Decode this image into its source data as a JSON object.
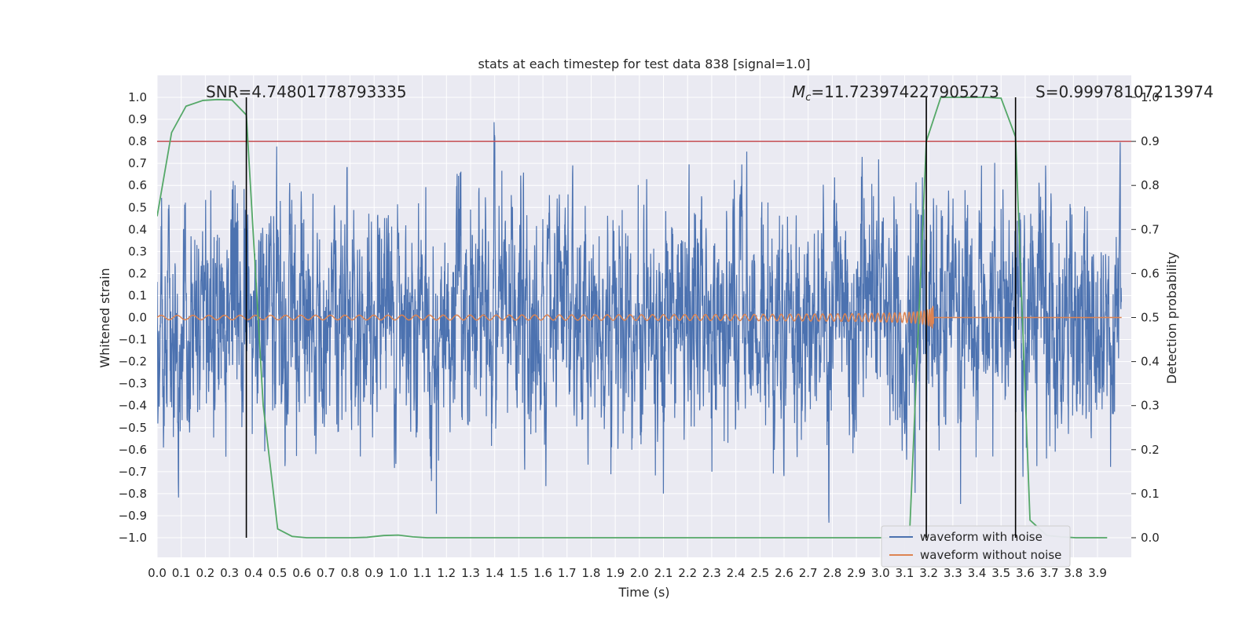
{
  "chart_data": {
    "type": "line",
    "title": "stats at each timestep for test data 838 [signal=1.0]",
    "xlabel": "Time (s)",
    "ylabel": "Whitened strain",
    "y2label": "Detection probability",
    "xlim": [
      0.0,
      4.0
    ],
    "ylim": [
      -1.1,
      1.1
    ],
    "y2lim": [
      -0.05,
      1.0
    ],
    "x_ticks": [
      0.0,
      0.1,
      0.2,
      0.3,
      0.4,
      0.5,
      0.6,
      0.7,
      0.8,
      0.9,
      1.0,
      1.1,
      1.2,
      1.3,
      1.4,
      1.5,
      1.6,
      1.7,
      1.8,
      1.9,
      2.0,
      2.1,
      2.2,
      2.3,
      2.4,
      2.5,
      2.6,
      2.7,
      2.8,
      2.9,
      3.0,
      3.1,
      3.2,
      3.3,
      3.4,
      3.5,
      3.6,
      3.7,
      3.8,
      3.9
    ],
    "x_tick_labels": [
      "0.0",
      "0.1",
      "0.2",
      "0.3",
      "0.4",
      "0.5",
      "0.6",
      "0.7",
      "0.8",
      "0.9",
      "1.0",
      "1.1",
      "1.2",
      "1.3",
      "1.4",
      "1.5",
      "1.6",
      "1.7",
      "1.8",
      "1.9",
      "2.0",
      "2.1",
      "2.2",
      "2.3",
      "2.4",
      "2.5",
      "2.6",
      "2.7",
      "2.8",
      "2.9",
      "3.0",
      "3.1",
      "3.2",
      "3.3",
      "3.4",
      "3.5",
      "3.6",
      "3.7",
      "3.8",
      "3.9"
    ],
    "y_ticks": [
      1.0,
      0.9,
      0.8,
      0.7,
      0.6,
      0.5,
      0.4,
      0.3,
      0.2,
      0.1,
      0.0,
      -0.1,
      -0.2,
      -0.3,
      -0.4,
      -0.5,
      -0.6,
      -0.7,
      -0.8,
      -0.9,
      -1.0
    ],
    "y_tick_labels": [
      "1.0",
      "0.9",
      "0.8",
      "0.7",
      "0.6",
      "0.5",
      "0.4",
      "0.3",
      "0.2",
      "0.1",
      "0.0",
      "−0.1",
      "−0.2",
      "−0.3",
      "−0.4",
      "−0.5",
      "−0.6",
      "−0.7",
      "−0.8",
      "−0.9",
      "−1.0"
    ],
    "y2_ticks": [
      1.0,
      0.9,
      0.8,
      0.7,
      0.6,
      0.5,
      0.4,
      0.3,
      0.2,
      0.1,
      0.0
    ],
    "y2_tick_labels": [
      "1.0",
      "0.9",
      "0.8",
      "0.7",
      "0.6",
      "0.5",
      "0.4",
      "0.3",
      "0.2",
      "0.1",
      "0.0"
    ],
    "grid": true,
    "legend_position": "bottom-right",
    "series": [
      {
        "name": "waveform with noise",
        "color": "#4c72b0",
        "axis": "left",
        "description_values": "dense random noise spanning roughly -1.0 to 1.0 across 0.0-4.0 s"
      },
      {
        "name": "waveform without noise",
        "color": "#dd8452",
        "axis": "left",
        "t_merge": 3.22,
        "amplitude_start": 0.01,
        "amplitude_peak": 0.17
      },
      {
        "color": "#55a868",
        "axis": "right",
        "x": [
          0.0,
          0.06,
          0.12,
          0.19,
          0.25,
          0.31,
          0.37,
          0.44,
          0.5,
          0.56,
          0.62,
          0.69,
          0.75,
          0.81,
          0.87,
          0.94,
          1.0,
          1.06,
          1.12,
          1.19,
          1.25,
          1.31,
          1.37,
          1.44,
          1.5,
          1.56,
          1.62,
          1.69,
          1.75,
          1.81,
          1.87,
          1.94,
          2.0,
          2.06,
          2.12,
          2.19,
          2.25,
          2.31,
          2.37,
          2.44,
          2.5,
          2.56,
          2.62,
          2.69,
          2.75,
          2.81,
          2.87,
          2.94,
          3.0,
          3.06,
          3.12,
          3.19,
          3.25,
          3.31,
          3.37,
          3.44,
          3.5,
          3.56,
          3.62,
          3.69,
          3.75,
          3.81,
          3.87,
          3.94
        ],
        "y": [
          0.73,
          0.92,
          0.98,
          0.993,
          0.995,
          0.994,
          0.96,
          0.3,
          0.02,
          0.003,
          0.0,
          0.0,
          0.0,
          0.0,
          0.001,
          0.005,
          0.006,
          0.002,
          0.0,
          0.0,
          0.0,
          0.0,
          0.0,
          0.0,
          0.0,
          0.0,
          0.0,
          0.0,
          0.0,
          0.0,
          0.0,
          0.0,
          0.0,
          0.0,
          0.0,
          0.0,
          0.0,
          0.0,
          0.0,
          0.0,
          0.0,
          0.0,
          0.0,
          0.0,
          0.0,
          0.0,
          0.0,
          0.0,
          0.0,
          0.0,
          0.0,
          0.9,
          1.0,
          1.0,
          1.0,
          1.0,
          0.998,
          0.91,
          0.04,
          0.005,
          0.002,
          0.0,
          0.0,
          0.0
        ]
      }
    ],
    "threshold": {
      "value": 0.9,
      "axis": "right",
      "color": "#c44e52"
    },
    "vertical_markers": [
      0.37,
      3.19,
      3.56
    ],
    "annotations": {
      "snr": "SNR=4.74801778793335",
      "mc_symbol": "M",
      "mc_subscript": "c",
      "mc_value": "=11.723974227905273",
      "s": "S=0.9997810721397 4"
    }
  }
}
